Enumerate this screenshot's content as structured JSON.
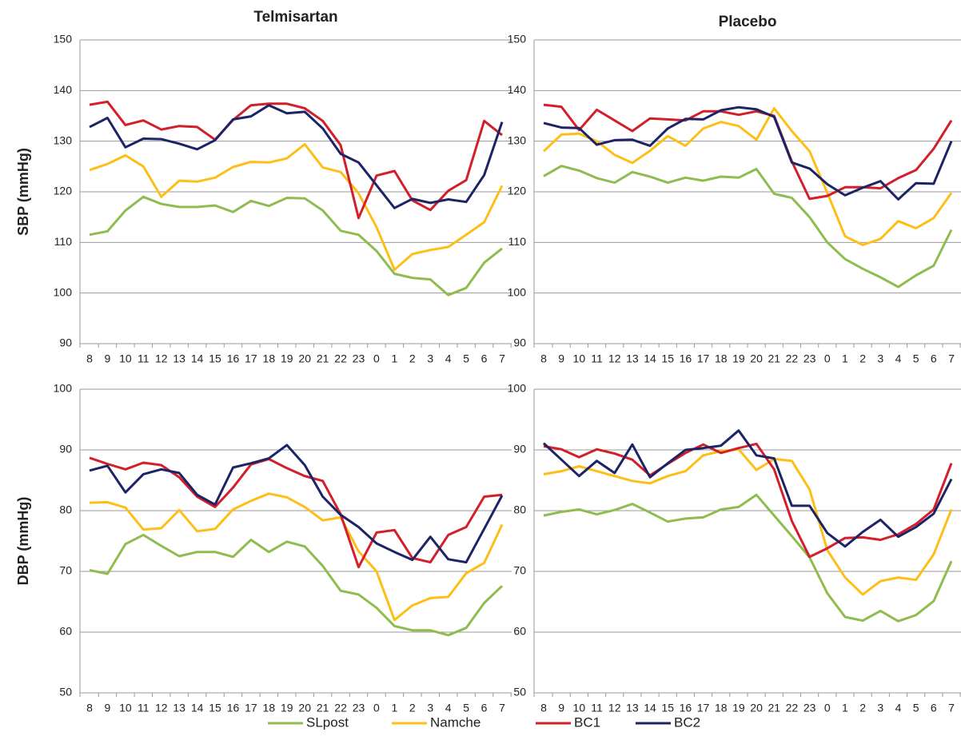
{
  "chart_data": [
    {
      "type": "line",
      "title": "Telmisartan",
      "ylabel": "SBP (mmHg)",
      "categories": [
        "8",
        "9",
        "10",
        "11",
        "12",
        "13",
        "14",
        "15",
        "16",
        "17",
        "18",
        "19",
        "20",
        "21",
        "22",
        "23",
        "0",
        "1",
        "2",
        "3",
        "4",
        "5",
        "6",
        "7"
      ],
      "ylim": [
        90,
        150
      ],
      "yticks": [
        90,
        100,
        110,
        120,
        130,
        140,
        150
      ],
      "grid": true,
      "series": [
        {
          "values": [
            111.5,
            112.2,
            116.3,
            119,
            117.6,
            117,
            117,
            117.3,
            116,
            118.2,
            117.2,
            118.8,
            118.7,
            116.3,
            112.3,
            111.5,
            108.3,
            103.8,
            103,
            102.7,
            99.6,
            101,
            106,
            108.8
          ]
        },
        {
          "values": [
            124.3,
            125.5,
            127.2,
            125,
            119,
            122.2,
            122,
            122.8,
            124.9,
            125.9,
            125.8,
            126.6,
            129.4,
            124.8,
            123.9,
            119.7,
            113,
            104.6,
            107.7,
            108.5,
            109.1,
            111.5,
            114,
            121.2
          ]
        },
        {
          "values": [
            137.2,
            137.8,
            133.2,
            134.1,
            132.3,
            133,
            132.8,
            130.3,
            134.2,
            137.1,
            137.4,
            137.4,
            136.5,
            134,
            129.2,
            114.8,
            123.2,
            124.1,
            118.3,
            116.4,
            120.2,
            122.3,
            134,
            131.2
          ]
        },
        {
          "values": [
            132.8,
            134.6,
            128.8,
            130.5,
            130.4,
            129.5,
            128.4,
            130.2,
            134.3,
            134.9,
            137.1,
            135.5,
            135.8,
            132.5,
            127.5,
            125.8,
            121.3,
            116.8,
            118.6,
            117.8,
            118.5,
            118,
            123.3,
            133.8
          ]
        }
      ]
    },
    {
      "type": "line",
      "title": "Placebo",
      "categories": [
        "8",
        "9",
        "10",
        "11",
        "12",
        "13",
        "14",
        "15",
        "16",
        "17",
        "18",
        "19",
        "20",
        "21",
        "22",
        "23",
        "0",
        "1",
        "2",
        "3",
        "4",
        "5",
        "6",
        "7"
      ],
      "ylim": [
        90,
        150
      ],
      "yticks": [
        90,
        100,
        110,
        120,
        130,
        140,
        150
      ],
      "grid": true,
      "series": [
        {
          "values": [
            123.1,
            125.1,
            124.2,
            122.7,
            121.8,
            123.9,
            123,
            121.8,
            122.8,
            122.2,
            123,
            122.8,
            124.5,
            119.6,
            118.8,
            115,
            110,
            106.7,
            104.8,
            103.1,
            101.2,
            103.5,
            105.4,
            112.5
          ]
        },
        {
          "values": [
            128,
            131.3,
            131.5,
            130,
            127.3,
            125.7,
            128.1,
            131,
            129.1,
            132.5,
            133.8,
            133,
            130.3,
            136.5,
            132,
            128,
            119.8,
            111.2,
            109.5,
            110.7,
            114.2,
            112.8,
            114.8,
            119.8
          ]
        },
        {
          "values": [
            137.2,
            136.8,
            132.2,
            136.2,
            134.1,
            132,
            134.5,
            134.3,
            134.1,
            135.9,
            135.9,
            135.2,
            135.9,
            135,
            126,
            118.6,
            119.2,
            120.9,
            120.9,
            120.7,
            122.7,
            124.3,
            128.5,
            134.1
          ]
        },
        {
          "values": [
            133.6,
            132.7,
            132.6,
            129.3,
            130.2,
            130.3,
            129.1,
            132.5,
            134.4,
            134.3,
            136.1,
            136.7,
            136.3,
            134.8,
            125.8,
            124.6,
            121.5,
            119.3,
            120.8,
            122.1,
            118.5,
            121.7,
            121.6,
            130
          ]
        }
      ]
    },
    {
      "type": "line",
      "ylabel": "DBP (mmHg)",
      "categories": [
        "8",
        "9",
        "10",
        "11",
        "12",
        "13",
        "14",
        "15",
        "16",
        "17",
        "18",
        "19",
        "20",
        "21",
        "22",
        "23",
        "0",
        "1",
        "2",
        "3",
        "4",
        "5",
        "6",
        "7"
      ],
      "ylim": [
        50,
        100
      ],
      "yticks": [
        50,
        60,
        70,
        80,
        90,
        100
      ],
      "grid": true,
      "series": [
        {
          "values": [
            70.2,
            69.6,
            74.5,
            76,
            74.2,
            72.5,
            73.2,
            73.2,
            72.4,
            75.2,
            73.2,
            74.9,
            74.1,
            70.9,
            66.8,
            66.2,
            64,
            61,
            60.3,
            60.3,
            59.5,
            60.7,
            64.8,
            67.6
          ]
        },
        {
          "values": [
            81.3,
            81.4,
            80.5,
            76.9,
            77.1,
            80.1,
            76.6,
            77,
            80.2,
            81.6,
            82.8,
            82.2,
            80.6,
            78.4,
            78.9,
            73.3,
            70,
            62,
            64.4,
            65.6,
            65.8,
            69.7,
            71.4,
            77.7
          ]
        },
        {
          "values": [
            88.7,
            87.7,
            86.8,
            87.9,
            87.5,
            85.5,
            82.3,
            80.6,
            83.8,
            87.6,
            88.5,
            87,
            85.7,
            84.9,
            79.4,
            70.7,
            76.4,
            76.8,
            72.2,
            71.5,
            76,
            77.3,
            82.3,
            82.6
          ]
        },
        {
          "values": [
            86.6,
            87.4,
            83,
            86,
            86.8,
            86.2,
            82.6,
            81,
            87.1,
            87.8,
            88.6,
            90.8,
            87.5,
            82.3,
            79.3,
            77.3,
            74.6,
            73.2,
            71.9,
            75.7,
            72,
            71.5,
            77,
            82.5
          ]
        }
      ]
    },
    {
      "type": "line",
      "categories": [
        "8",
        "9",
        "10",
        "11",
        "12",
        "13",
        "14",
        "15",
        "16",
        "17",
        "18",
        "19",
        "20",
        "21",
        "22",
        "23",
        "0",
        "1",
        "2",
        "3",
        "4",
        "5",
        "6",
        "7"
      ],
      "ylim": [
        50,
        100
      ],
      "yticks": [
        50,
        60,
        70,
        80,
        90,
        100
      ],
      "grid": true,
      "series": [
        {
          "values": [
            79.2,
            79.8,
            80.2,
            79.4,
            80.1,
            81.1,
            79.7,
            78.2,
            78.7,
            78.9,
            80.2,
            80.6,
            82.6,
            79.2,
            75.8,
            72.3,
            66.4,
            62.5,
            61.9,
            63.5,
            61.8,
            62.8,
            65.1,
            71.7
          ]
        },
        {
          "values": [
            86,
            86.5,
            87.3,
            86.5,
            85.7,
            84.9,
            84.5,
            85.7,
            86.5,
            89.1,
            89.8,
            90.1,
            86.7,
            88.5,
            88.2,
            83.5,
            73.5,
            69,
            66.2,
            68.4,
            69,
            68.6,
            72.8,
            80.2
          ]
        },
        {
          "values": [
            90.6,
            90.1,
            88.8,
            90.1,
            89.4,
            88.4,
            85.8,
            87.7,
            89.5,
            90.9,
            89.5,
            90.3,
            91,
            86.8,
            78.3,
            72.4,
            73.8,
            75.5,
            75.6,
            75.2,
            76.1,
            77.8,
            80.2,
            87.8
          ]
        },
        {
          "values": [
            91.1,
            88.4,
            85.7,
            88.2,
            86.2,
            90.9,
            85.5,
            87.8,
            90,
            90.3,
            90.7,
            93.2,
            89.1,
            88.6,
            80.8,
            80.8,
            76.3,
            74.1,
            76.5,
            78.5,
            75.7,
            77.3,
            79.5,
            85.2
          ]
        }
      ]
    }
  ],
  "legend": [
    {
      "name": "SLpost",
      "color": "#8fbc4f"
    },
    {
      "name": "Namche",
      "color": "#fdbf17"
    },
    {
      "name": "BC1",
      "color": "#d21f2a"
    },
    {
      "name": "BC2",
      "color": "#1d2466"
    }
  ]
}
